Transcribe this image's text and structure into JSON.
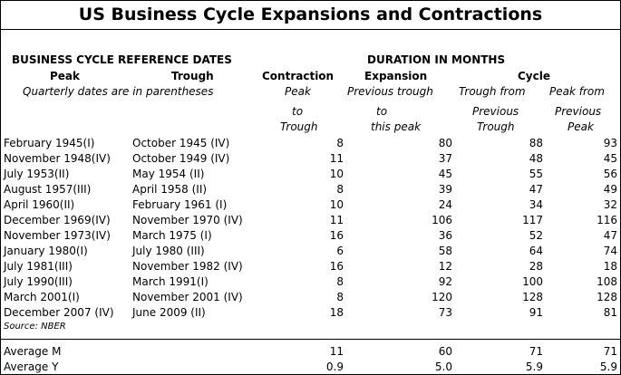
{
  "title": "US Business Cycle Expansions and Contractions",
  "headers": {
    "ref_dates": "BUSINESS CYCLE REFERENCE DATES",
    "duration": "DURATION IN MONTHS",
    "peak": "Peak",
    "trough": "Trough",
    "contraction": "Contraction",
    "expansion": "Expansion",
    "cycle": "Cycle",
    "quarterly_note": "Quarterly dates are in parentheses",
    "contraction_sub": [
      "Peak",
      "to",
      "Trough"
    ],
    "expansion_sub": [
      "Previous trough",
      "to",
      "this peak"
    ],
    "cycle_trough_sub": [
      "Trough from",
      "Previous",
      "Trough"
    ],
    "cycle_peak_sub": [
      "Peak from",
      "Previous",
      "Peak"
    ]
  },
  "rows": [
    {
      "peak": "February 1945(I)",
      "trough": "October 1945 (IV)",
      "contraction": "8",
      "expansion": "80",
      "cycle_trough": "88",
      "cycle_peak": "93"
    },
    {
      "peak": "November 1948(IV)",
      "trough": "October 1949 (IV)",
      "contraction": "11",
      "expansion": "37",
      "cycle_trough": "48",
      "cycle_peak": "45"
    },
    {
      "peak": "July 1953(II)",
      "trough": "May 1954 (II)",
      "contraction": "10",
      "expansion": "45",
      "cycle_trough": "55",
      "cycle_peak": "56"
    },
    {
      "peak": "August 1957(III)",
      "trough": "April 1958 (II)",
      "contraction": "8",
      "expansion": "39",
      "cycle_trough": "47",
      "cycle_peak": "49"
    },
    {
      "peak": "April 1960(II)",
      "trough": "February 1961 (I)",
      "contraction": "10",
      "expansion": "24",
      "cycle_trough": "34",
      "cycle_peak": "32"
    },
    {
      "peak": "December 1969(IV)",
      "trough": "November 1970 (IV)",
      "contraction": "11",
      "expansion": "106",
      "cycle_trough": "117",
      "cycle_peak": "116"
    },
    {
      "peak": "November 1973(IV)",
      "trough": "March 1975 (I)",
      "contraction": "16",
      "expansion": "36",
      "cycle_trough": "52",
      "cycle_peak": "47"
    },
    {
      "peak": "January 1980(I)",
      "trough": "July 1980 (III)",
      "contraction": "6",
      "expansion": "58",
      "cycle_trough": "64",
      "cycle_peak": "74"
    },
    {
      "peak": "July 1981(III)",
      "trough": "November 1982 (IV)",
      "contraction": "16",
      "expansion": "12",
      "cycle_trough": "28",
      "cycle_peak": "18"
    },
    {
      "peak": "July 1990(III)",
      "trough": "March 1991(I)",
      "contraction": "8",
      "expansion": "92",
      "cycle_trough": "100",
      "cycle_peak": "108"
    },
    {
      "peak": "March 2001(I)",
      "trough": "November 2001 (IV)",
      "contraction": "8",
      "expansion": "120",
      "cycle_trough": "128",
      "cycle_peak": "128"
    },
    {
      "peak": "December 2007 (IV)",
      "trough": "June 2009 (II)",
      "contraction": "18",
      "expansion": "73",
      "cycle_trough": "91",
      "cycle_peak": "81"
    }
  ],
  "source": "Source: NBER",
  "averages": [
    {
      "label": "Average M",
      "contraction": "11",
      "expansion": "60",
      "cycle_trough": "71",
      "cycle_peak": "71"
    },
    {
      "label": "Average Y",
      "contraction": "0.9",
      "expansion": "5.0",
      "cycle_trough": "5.9",
      "cycle_peak": "5.9"
    }
  ]
}
